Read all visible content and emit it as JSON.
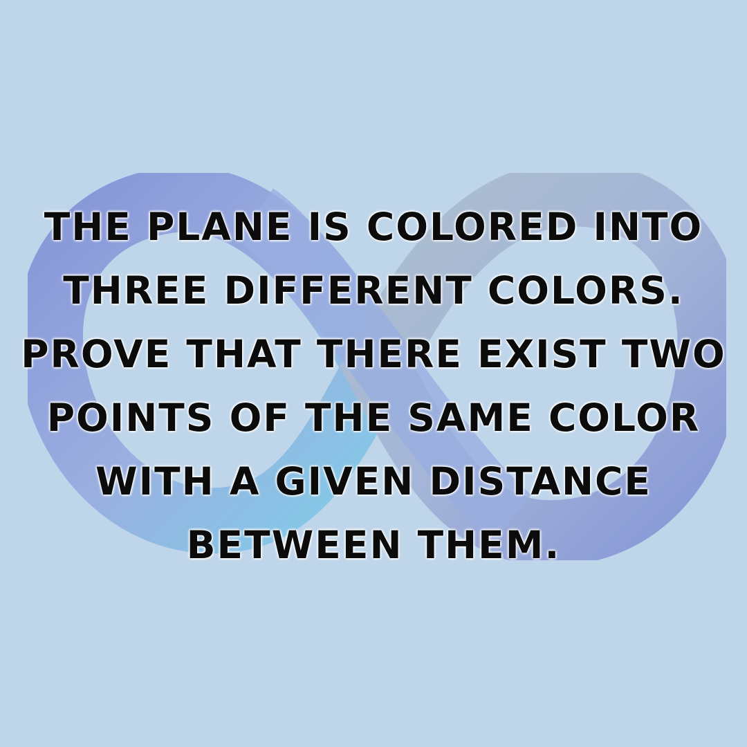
{
  "background_color": "#bed5ea",
  "logo": {
    "icon": "infinity-icon",
    "colors": [
      "#5560c8",
      "#7f8fd6",
      "#9aa9b6",
      "#4fc6e6"
    ]
  },
  "statement": {
    "lines": [
      "The plane is colored into",
      "three different colors.",
      "Prove that there exist two",
      "points of the same color",
      "with a given distance",
      "between them."
    ]
  }
}
